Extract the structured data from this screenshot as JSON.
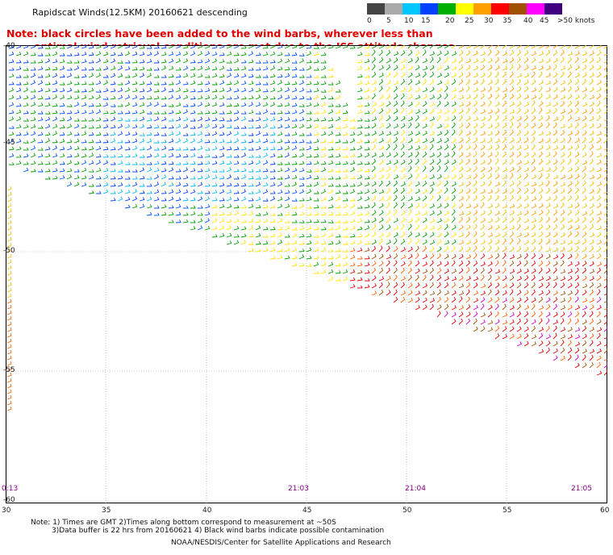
{
  "header": {
    "title": "Rapidscat Winds(12.5KM) 20160621 descending"
  },
  "note": {
    "line1": "Note: black circles have been added to the wind barbs, wherever less than",
    "line2": "optimal wind retrieval conditions are met due to the ISS attitude changes."
  },
  "colorbar": {
    "labels": [
      "0",
      "5",
      "10",
      "15",
      "20",
      "25",
      "30",
      "35",
      "40",
      "45",
      ">50 knots"
    ],
    "colors": [
      "#444444",
      "#aaaaaa",
      "#00c8ff",
      "#0040ff",
      "#00b000",
      "#ffff00",
      "#ffa000",
      "#ff0000",
      "#a05000",
      "#ff00ff",
      "#400080"
    ]
  },
  "map": {
    "lat_labels": [
      "-40",
      "-45",
      "-50",
      "-55",
      "-60"
    ],
    "lon_labels": [
      "30",
      "35",
      "40",
      "45",
      "50",
      "55",
      "60"
    ],
    "time_labels": [
      "0:13",
      "21:03",
      "21:04",
      "21:05"
    ]
  },
  "footer": {
    "line1": "Note: 1) Times are GMT 2)Times along bottom correspond to measurement at ~50S",
    "line2": "3)Data buffer is 22 hrs from 20160621 4) Black wind barbs indicate possible contamination",
    "line3": "NOAA/NESDIS/Center for Satellite Applications and Research"
  }
}
